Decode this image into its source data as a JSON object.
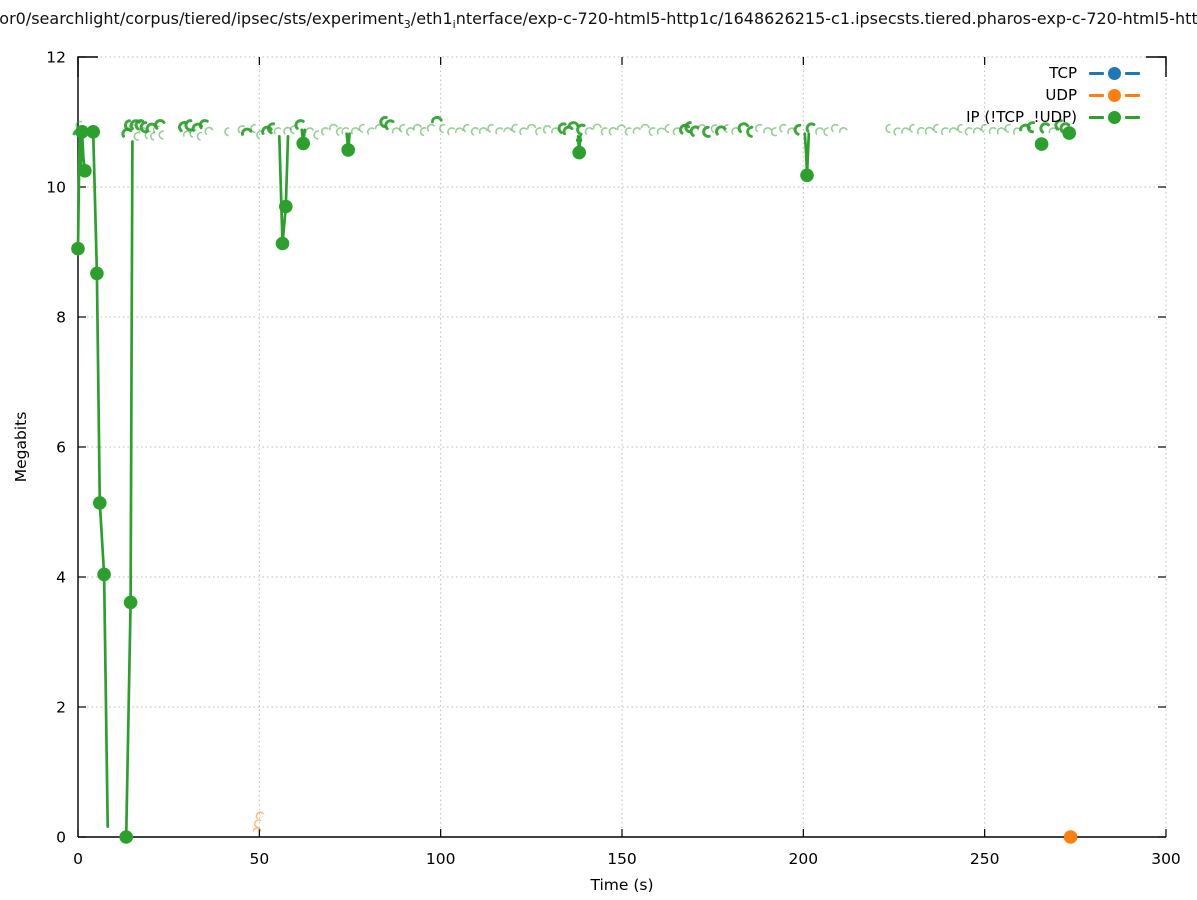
{
  "title": {
    "part1": "or0/searchlight/corpus/tiered/ipsec/sts/experiment",
    "sub1": "3",
    "part2": "/eth1",
    "sub2": "i",
    "part3": "nterface/exp-c-720-html5-http1c/1648626215-c1.ipsecsts.tiered.pharos-exp-c-720-html5-htt"
  },
  "chart_data": {
    "type": "scatter",
    "title": "or0/searchlight/corpus/tiered/ipsec/sts/experiment₃/eth1ᵢnterface/exp-c-720-html5-http1c/1648626215-c1.ipsecsts.tiered.pharos-exp-c-720-html5-htt",
    "xlabel": "Time (s)",
    "ylabel": "Megabits",
    "xlim": [
      0,
      300
    ],
    "ylim": [
      0,
      12
    ],
    "xticks": [
      0,
      50,
      100,
      150,
      200,
      250,
      300
    ],
    "yticks": [
      0,
      2,
      4,
      6,
      8,
      10,
      12
    ],
    "grid": true,
    "legend_position": "top-right",
    "background": "#ffffff",
    "grid_color": "#bdbdbd",
    "axis_color": "#000000",
    "series": [
      {
        "name": "TCP",
        "color": "#1f77b4",
        "points": [],
        "segments": [],
        "band_marks": []
      },
      {
        "name": "UDP",
        "color": "#ff7f0e",
        "points": [
          [
            273.7,
            0.0
          ]
        ],
        "segments": [],
        "band_marks": [
          [
            49.4,
            0.08,
            0
          ],
          [
            49.9,
            0.2,
            0
          ],
          [
            50.3,
            0.32,
            0
          ]
        ]
      },
      {
        "name": "IP (!TCP  !UDP)",
        "color": "#2ca02c",
        "points": [
          [
            0,
            9.05
          ],
          [
            1.1,
            10.85
          ],
          [
            1.9,
            10.25
          ],
          [
            4.2,
            10.85
          ],
          [
            5.2,
            8.67
          ],
          [
            6.0,
            5.14
          ],
          [
            7.2,
            4.04
          ],
          [
            13.3,
            0.0
          ],
          [
            14.5,
            3.61
          ],
          [
            56.4,
            9.13
          ],
          [
            57.3,
            9.7
          ],
          [
            62.1,
            10.67
          ],
          [
            74.5,
            10.57
          ],
          [
            138.2,
            10.53
          ],
          [
            201.0,
            10.18
          ],
          [
            265.7,
            10.66
          ],
          [
            273.3,
            10.83
          ]
        ],
        "small_points": [
          [
            137.9,
            10.72
          ],
          [
            138.45,
            10.72
          ]
        ],
        "segments": [
          [
            [
              0,
              9.05
            ],
            [
              0.4,
              10.75
            ],
            [
              0.8,
              10.35
            ],
            [
              1.1,
              10.85
            ],
            [
              1.5,
              10.45
            ],
            [
              1.9,
              10.25
            ]
          ],
          [
            [
              4.2,
              10.85
            ],
            [
              5.2,
              8.67
            ],
            [
              6.0,
              5.14
            ],
            [
              7.2,
              4.04
            ],
            [
              8.2,
              0.16
            ]
          ],
          [
            [
              13.3,
              0.0
            ],
            [
              14.5,
              3.61
            ],
            [
              15.0,
              10.7
            ]
          ],
          [
            [
              55.5,
              10.78
            ],
            [
              56.4,
              9.13
            ],
            [
              57.3,
              9.7
            ],
            [
              57.9,
              10.78
            ]
          ],
          [
            [
              61.7,
              10.88
            ],
            [
              62.1,
              10.67
            ],
            [
              62.5,
              10.88
            ]
          ],
          [
            [
              74.1,
              10.82
            ],
            [
              74.5,
              10.57
            ],
            [
              74.9,
              10.82
            ]
          ],
          [
            [
              137.9,
              10.78
            ],
            [
              138.2,
              10.53
            ],
            [
              138.5,
              10.78
            ]
          ],
          [
            [
              200.4,
              10.82
            ],
            [
              200.8,
              10.5
            ],
            [
              201.0,
              10.18
            ],
            [
              201.5,
              10.82
            ]
          ]
        ],
        "band_marks": [
          [
            0.15,
            10.8,
            1
          ],
          [
            0.55,
            10.95,
            0
          ],
          [
            13.6,
            10.82,
            1
          ],
          [
            14.3,
            10.95,
            1
          ],
          [
            15.1,
            10.9,
            0
          ],
          [
            15.9,
            10.95,
            1
          ],
          [
            16.6,
            10.78,
            0
          ],
          [
            17.3,
            10.95,
            1
          ],
          [
            18.0,
            10.85,
            0
          ],
          [
            18.7,
            10.92,
            1
          ],
          [
            19.5,
            10.8,
            0
          ],
          [
            20.3,
            10.9,
            1
          ],
          [
            21.1,
            10.78,
            0
          ],
          [
            21.9,
            10.88,
            0
          ],
          [
            22.7,
            10.95,
            1
          ],
          [
            23.5,
            10.8,
            0
          ],
          [
            29.3,
            10.92,
            1
          ],
          [
            30.2,
            10.8,
            0
          ],
          [
            31.1,
            10.95,
            1
          ],
          [
            32.0,
            10.82,
            0
          ],
          [
            33.0,
            10.9,
            1
          ],
          [
            34.0,
            10.78,
            0
          ],
          [
            35.0,
            10.95,
            1
          ],
          [
            36.2,
            10.85,
            0
          ],
          [
            41.5,
            10.85,
            0
          ],
          [
            45.3,
            10.88,
            0
          ],
          [
            46.6,
            10.82,
            1
          ],
          [
            48.7,
            10.9,
            0
          ],
          [
            50.4,
            10.8,
            0
          ],
          [
            52.2,
            10.85,
            1
          ],
          [
            53.8,
            10.9,
            1
          ],
          [
            55.2,
            10.85,
            0
          ],
          [
            57.9,
            10.85,
            0
          ],
          [
            59.7,
            10.88,
            0
          ],
          [
            61.4,
            10.95,
            1
          ],
          [
            63.9,
            10.85,
            0
          ],
          [
            66.1,
            10.8,
            0
          ],
          [
            68.3,
            10.85,
            0
          ],
          [
            70.5,
            10.9,
            0
          ],
          [
            72.4,
            10.85,
            0
          ],
          [
            73.9,
            10.85,
            0
          ],
          [
            76.5,
            10.85,
            0
          ],
          [
            78.7,
            10.9,
            0
          ],
          [
            80.9,
            10.85,
            0
          ],
          [
            83.1,
            10.9,
            0
          ],
          [
            84.8,
            11.0,
            1
          ],
          [
            86.1,
            10.95,
            1
          ],
          [
            87.8,
            10.85,
            0
          ],
          [
            89.8,
            10.9,
            0
          ],
          [
            91.7,
            10.85,
            0
          ],
          [
            93.6,
            10.9,
            0
          ],
          [
            95.6,
            10.85,
            0
          ],
          [
            97.5,
            10.9,
            0
          ],
          [
            99.0,
            11.0,
            1
          ],
          [
            100.8,
            10.9,
            0
          ],
          [
            103.0,
            10.85,
            0
          ],
          [
            105.2,
            10.85,
            0
          ],
          [
            107.4,
            10.9,
            0
          ],
          [
            109.6,
            10.85,
            0
          ],
          [
            111.8,
            10.85,
            0
          ],
          [
            114.1,
            10.9,
            0
          ],
          [
            116.3,
            10.85,
            0
          ],
          [
            118.5,
            10.85,
            0
          ],
          [
            120.7,
            10.9,
            0
          ],
          [
            122.9,
            10.85,
            0
          ],
          [
            125.1,
            10.9,
            0
          ],
          [
            127.3,
            10.85,
            0
          ],
          [
            129.5,
            10.88,
            0
          ],
          [
            131.7,
            10.85,
            0
          ],
          [
            133.9,
            10.9,
            1
          ],
          [
            135.3,
            10.85,
            1
          ],
          [
            136.6,
            10.92,
            1
          ],
          [
            139.1,
            10.88,
            1
          ],
          [
            141.0,
            10.85,
            0
          ],
          [
            143.2,
            10.9,
            0
          ],
          [
            145.4,
            10.85,
            0
          ],
          [
            147.6,
            10.85,
            0
          ],
          [
            149.8,
            10.9,
            0
          ],
          [
            152.0,
            10.85,
            0
          ],
          [
            154.2,
            10.85,
            0
          ],
          [
            156.4,
            10.9,
            0
          ],
          [
            158.6,
            10.85,
            0
          ],
          [
            160.8,
            10.85,
            0
          ],
          [
            163.0,
            10.9,
            0
          ],
          [
            165.2,
            10.85,
            0
          ],
          [
            167.4,
            10.88,
            1
          ],
          [
            168.9,
            10.92,
            1
          ],
          [
            170.4,
            10.85,
            1
          ],
          [
            172.0,
            10.9,
            0
          ],
          [
            173.8,
            10.85,
            1
          ],
          [
            175.6,
            10.9,
            0
          ],
          [
            177.4,
            10.85,
            1
          ],
          [
            179.2,
            10.9,
            0
          ],
          [
            181.4,
            10.85,
            0
          ],
          [
            183.6,
            10.9,
            1
          ],
          [
            185.8,
            10.85,
            1
          ],
          [
            188.0,
            10.9,
            0
          ],
          [
            190.2,
            10.85,
            0
          ],
          [
            192.4,
            10.85,
            0
          ],
          [
            194.6,
            10.9,
            0
          ],
          [
            196.8,
            10.85,
            0
          ],
          [
            199.0,
            10.88,
            1
          ],
          [
            202.3,
            10.9,
            1
          ],
          [
            204.5,
            10.85,
            0
          ],
          [
            206.7,
            10.85,
            0
          ],
          [
            208.9,
            10.9,
            0
          ],
          [
            211.1,
            10.85,
            0
          ],
          [
            223.8,
            10.9,
            0
          ],
          [
            226.0,
            10.85,
            0
          ],
          [
            228.2,
            10.85,
            0
          ],
          [
            230.4,
            10.9,
            0
          ],
          [
            232.6,
            10.85,
            0
          ],
          [
            234.8,
            10.85,
            0
          ],
          [
            237.0,
            10.9,
            0
          ],
          [
            239.2,
            10.85,
            0
          ],
          [
            241.4,
            10.85,
            0
          ],
          [
            243.6,
            10.9,
            0
          ],
          [
            245.8,
            10.85,
            0
          ],
          [
            248.0,
            10.85,
            0
          ],
          [
            250.2,
            10.9,
            0
          ],
          [
            252.4,
            10.85,
            0
          ],
          [
            254.6,
            10.85,
            0
          ],
          [
            256.8,
            10.9,
            0
          ],
          [
            259.0,
            10.85,
            0
          ],
          [
            261.2,
            10.88,
            1
          ],
          [
            263.3,
            10.92,
            1
          ],
          [
            266.8,
            10.9,
            1
          ],
          [
            268.9,
            10.85,
            0
          ],
          [
            270.9,
            10.95,
            1
          ],
          [
            272.4,
            10.9,
            1
          ]
        ]
      }
    ]
  }
}
